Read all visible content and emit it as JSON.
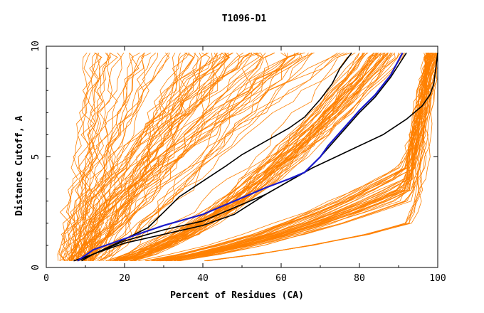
{
  "chart_data": {
    "type": "line",
    "title": "T1096-D1",
    "xlabel": "Percent of Residues (CA)",
    "ylabel": "Distance Cutoff, A",
    "xlim": [
      0,
      100
    ],
    "ylim": [
      0,
      10
    ],
    "x_ticks": [
      "0",
      "20",
      "40",
      "60",
      "80",
      "100"
    ],
    "y_ticks": [
      "0",
      "5",
      "10"
    ],
    "grid": false,
    "colors": {
      "models": "#ff8000",
      "highlight_blue": "#1a1acc",
      "highlight_black": "#000000"
    },
    "series": [
      {
        "name": "highlight-black-1",
        "color": "#000000",
        "points": [
          [
            9,
            0.3
          ],
          [
            12,
            0.6
          ],
          [
            18,
            1.1
          ],
          [
            26,
            1.8
          ],
          [
            30,
            2.5
          ],
          [
            34,
            3.2
          ],
          [
            40,
            3.9
          ],
          [
            46,
            4.6
          ],
          [
            50,
            5.1
          ],
          [
            56,
            5.7
          ],
          [
            62,
            6.3
          ],
          [
            66,
            6.8
          ],
          [
            70,
            7.6
          ],
          [
            73,
            8.3
          ],
          [
            75,
            9.0
          ],
          [
            78,
            9.7
          ]
        ]
      },
      {
        "name": "highlight-black-2",
        "color": "#000000",
        "points": [
          [
            8,
            0.3
          ],
          [
            12,
            0.6
          ],
          [
            20,
            1.1
          ],
          [
            30,
            1.5
          ],
          [
            40,
            1.9
          ],
          [
            48,
            2.4
          ],
          [
            56,
            3.3
          ],
          [
            62,
            3.9
          ],
          [
            66,
            4.3
          ],
          [
            70,
            5.0
          ],
          [
            72,
            5.4
          ],
          [
            76,
            6.2
          ],
          [
            80,
            7.0
          ],
          [
            84,
            7.7
          ],
          [
            88,
            8.6
          ],
          [
            92,
            9.7
          ]
        ]
      },
      {
        "name": "highlight-black-3",
        "color": "#000000",
        "points": [
          [
            7,
            0.3
          ],
          [
            12,
            0.6
          ],
          [
            20,
            1.2
          ],
          [
            30,
            1.7
          ],
          [
            40,
            2.1
          ],
          [
            48,
            2.7
          ],
          [
            56,
            3.3
          ],
          [
            62,
            3.9
          ],
          [
            68,
            4.5
          ],
          [
            74,
            5.0
          ],
          [
            80,
            5.5
          ],
          [
            86,
            6.0
          ],
          [
            92,
            6.7
          ],
          [
            96,
            7.3
          ],
          [
            98,
            7.8
          ],
          [
            99,
            8.3
          ],
          [
            100,
            9.7
          ]
        ]
      },
      {
        "name": "highlight-blue",
        "color": "#1a1acc",
        "points": [
          [
            8,
            0.3
          ],
          [
            12,
            0.8
          ],
          [
            20,
            1.3
          ],
          [
            30,
            1.9
          ],
          [
            40,
            2.4
          ],
          [
            48,
            3.0
          ],
          [
            56,
            3.6
          ],
          [
            62,
            4.0
          ],
          [
            66,
            4.3
          ],
          [
            70,
            5.0
          ],
          [
            72,
            5.5
          ],
          [
            76,
            6.3
          ],
          [
            80,
            7.1
          ],
          [
            84,
            7.8
          ],
          [
            88,
            8.7
          ],
          [
            91,
            9.7
          ]
        ]
      }
    ],
    "bundles": [
      {
        "name": "steep-models",
        "count": 90,
        "x_start_range": [
          3,
          12
        ],
        "x_end_range": [
          10,
          80
        ],
        "shape": "steep"
      },
      {
        "name": "middle-models",
        "count": 45,
        "x_start_range": [
          4,
          12
        ],
        "x_end_range": [
          80,
          92
        ],
        "shape": "mid"
      },
      {
        "name": "plateau-models",
        "count": 45,
        "x_start_range": [
          4,
          14
        ],
        "x_end_range": [
          97,
          100
        ],
        "shape": "plateau"
      },
      {
        "name": "low-models",
        "count": 6,
        "x_start_range": [
          14,
          16
        ],
        "x_end_range": [
          98,
          100
        ],
        "shape": "low"
      }
    ]
  }
}
